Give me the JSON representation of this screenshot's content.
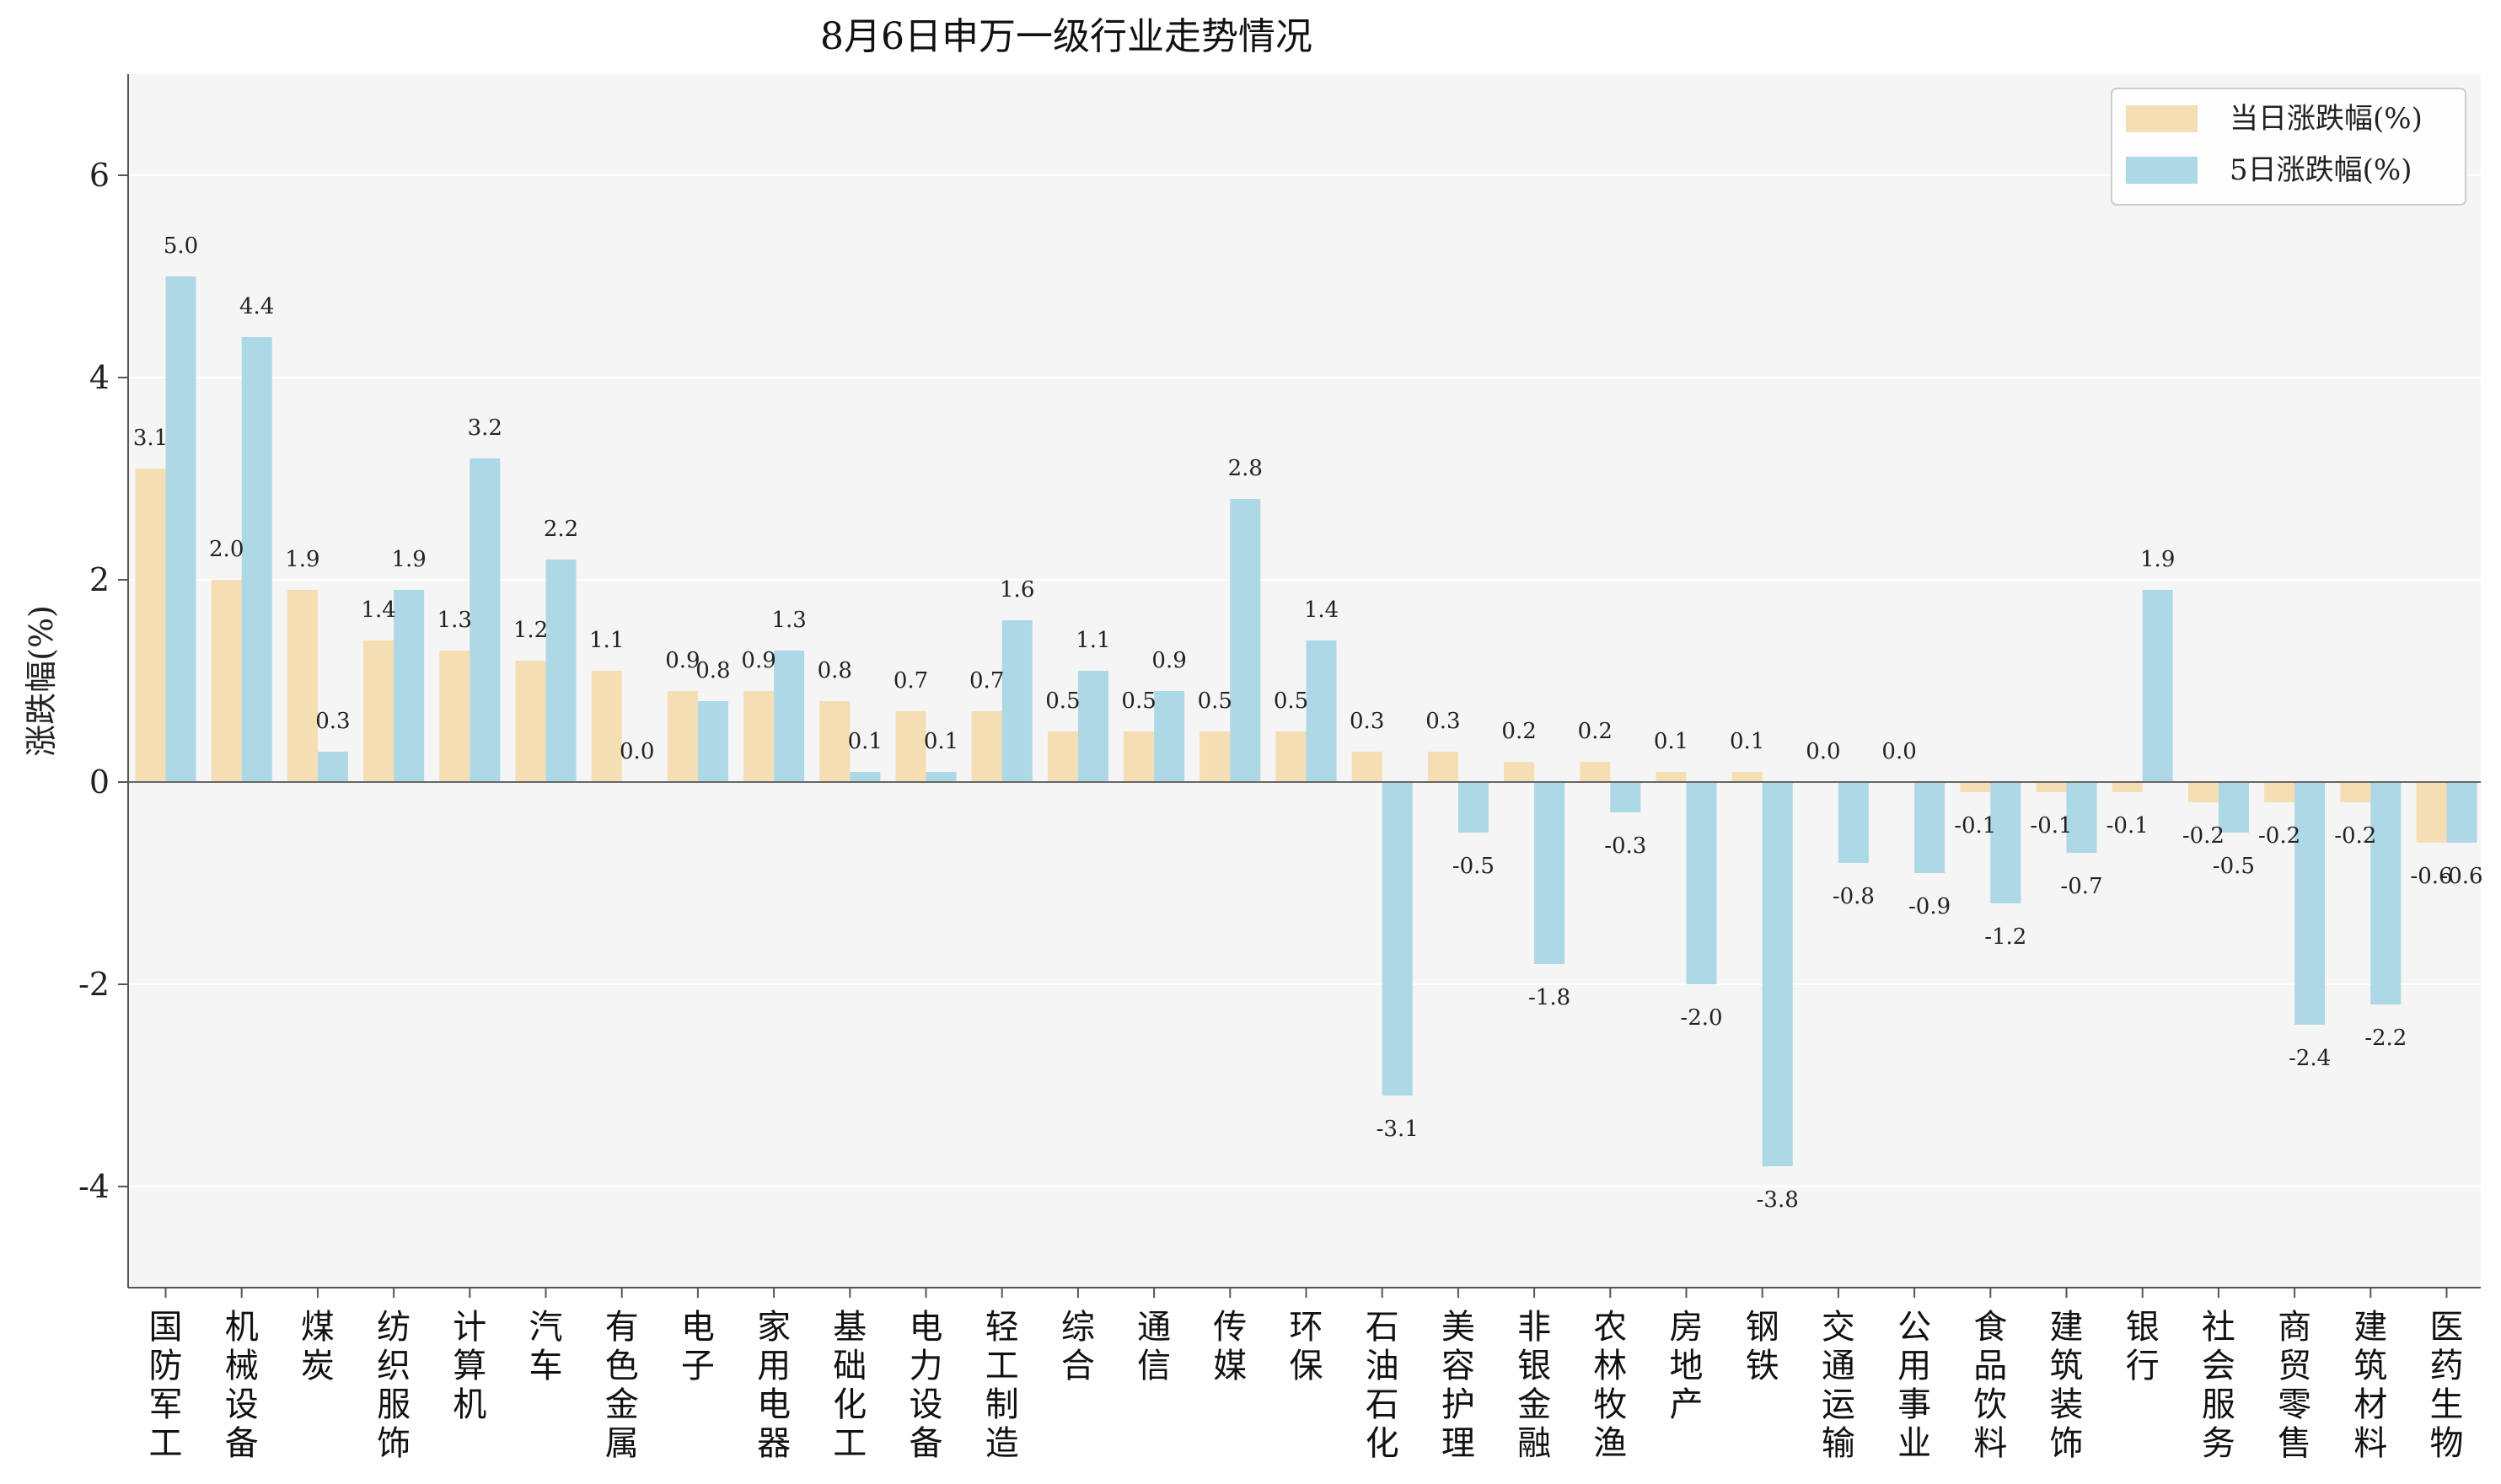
{
  "chart_data": {
    "type": "bar",
    "title": "8月6日申万一级行业走势情况",
    "xlabel": "",
    "ylabel": "涨跌幅(%)",
    "ylim": [
      -5,
      7
    ],
    "yticks": [
      -4,
      -2,
      0,
      2,
      4,
      6
    ],
    "grid": true,
    "legend_position": "top-right",
    "categories": [
      "国防军工",
      "机械设备",
      "煤炭",
      "纺织服饰",
      "计算机",
      "汽车",
      "有色金属",
      "电子",
      "家用电器",
      "基础化工",
      "电力设备",
      "轻工制造",
      "综合",
      "通信",
      "传媒",
      "环保",
      "石油石化",
      "美容护理",
      "非银金融",
      "农林牧渔",
      "房地产",
      "钢铁",
      "交通运输",
      "公用事业",
      "食品饮料",
      "建筑装饰",
      "银行",
      "社会服务",
      "商贸零售",
      "建筑材料",
      "医药生物"
    ],
    "series": [
      {
        "name": "当日涨跌幅(%)",
        "color": "#f5deb3",
        "values": [
          3.1,
          2.0,
          1.9,
          1.4,
          1.3,
          1.2,
          1.1,
          0.9,
          0.9,
          0.8,
          0.7,
          0.7,
          0.5,
          0.5,
          0.5,
          0.5,
          0.3,
          0.3,
          0.2,
          0.2,
          0.1,
          0.1,
          0.0,
          0.0,
          -0.1,
          -0.1,
          -0.1,
          -0.2,
          -0.2,
          -0.2,
          -0.6
        ]
      },
      {
        "name": "5日涨跌幅(%)",
        "color": "#add8e6",
        "values": [
          5.0,
          4.4,
          0.3,
          1.9,
          3.2,
          2.2,
          0.0,
          0.8,
          1.3,
          0.1,
          0.1,
          1.6,
          1.1,
          0.9,
          2.8,
          1.4,
          -3.1,
          -0.5,
          -1.8,
          -0.3,
          -2.0,
          -3.8,
          -0.8,
          -0.9,
          -1.2,
          -0.7,
          1.9,
          -0.5,
          -2.4,
          -2.2,
          -0.6
        ]
      }
    ]
  }
}
